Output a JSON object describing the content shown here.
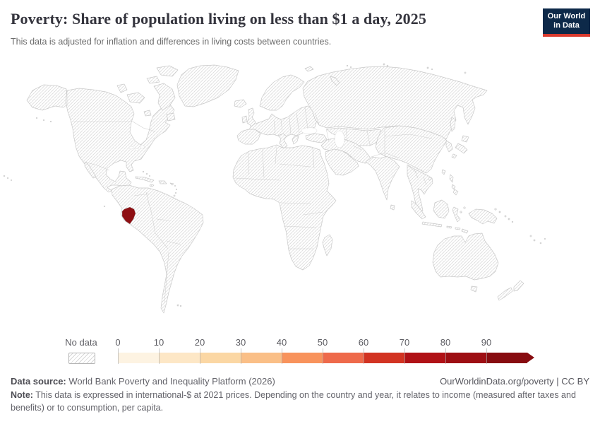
{
  "header": {
    "title": "Poverty: Share of population living on less than $1 a day, 2025",
    "subtitle": "This data is adjusted for inflation and differences in living costs between countries.",
    "logo": {
      "line1": "Our World",
      "line2": "in Data",
      "bg_color": "#0d2949",
      "accent_color": "#d93a2e"
    }
  },
  "map": {
    "ocean_color": "#ffffff",
    "border_color": "#c9c9c9",
    "hatch_color": "#dcdcdc",
    "highlight": {
      "entity": "Ecuador",
      "color": "#8e0f13"
    }
  },
  "legend": {
    "no_data_label": "No data",
    "tick_labels": [
      "0",
      "10",
      "20",
      "30",
      "40",
      "50",
      "60",
      "70",
      "80",
      "90"
    ],
    "bin_colors": [
      "#fdf3e2",
      "#fde7c6",
      "#fbd7a4",
      "#fabf87",
      "#f8935c",
      "#ee6a4b",
      "#d23322",
      "#b01116",
      "#9d0e13",
      "#870c10"
    ]
  },
  "footer": {
    "data_source_label": "Data source:",
    "data_source_value": " World Bank Poverty and Inequality Platform (2026)",
    "link_text": "OurWorldinData.org/poverty | CC BY",
    "note_label": "Note:",
    "note_text": " This data is expressed in international-$ at 2021 prices. Depending on the country and year, it relates to income (measured after taxes and benefits) or to consumption, per capita."
  },
  "chart_data": {
    "type": "heatmap",
    "subtype": "choropleth-world-map",
    "title": "Poverty: Share of population living on less than $1 a day, 2025",
    "subtitle": "This data is adjusted for inflation and differences in living costs between countries.",
    "year": "2025",
    "unit": "share of population living on less than $1 a day (%)",
    "legend": {
      "no_data_label": "No data",
      "bin_edges": [
        0,
        10,
        20,
        30,
        40,
        50,
        60,
        70,
        80,
        90
      ],
      "open_ended_max": true,
      "bin_colors": [
        "#fdf3e2",
        "#fde7c6",
        "#fbd7a4",
        "#fabf87",
        "#f8935c",
        "#ee6a4b",
        "#d23322",
        "#b01116",
        "#9d0e13",
        "#870c10"
      ]
    },
    "values": [
      {
        "entity": "Ecuador",
        "color": "#8e0f13",
        "approx_bin": "80-90"
      }
    ],
    "no_data": "All other countries are rendered with the hatched No data pattern"
  }
}
